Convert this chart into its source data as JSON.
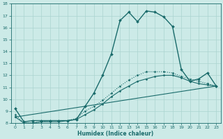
{
  "bg_color": "#cceae7",
  "grid_color": "#aad4d0",
  "line_color": "#1a6b6b",
  "xlabel": "Humidex (Indice chaleur)",
  "xlim": [
    -0.5,
    23.5
  ],
  "ylim": [
    8,
    18
  ],
  "yticks": [
    8,
    9,
    10,
    11,
    12,
    13,
    14,
    15,
    16,
    17,
    18
  ],
  "xticks": [
    0,
    1,
    2,
    3,
    4,
    5,
    6,
    7,
    8,
    9,
    10,
    11,
    12,
    13,
    14,
    15,
    16,
    17,
    18,
    19,
    20,
    21,
    22,
    23
  ],
  "series": [
    {
      "x": [
        0,
        1,
        2,
        3,
        4,
        5,
        6,
        7,
        8,
        9,
        10,
        11,
        12,
        13,
        14,
        15,
        16,
        17,
        18,
        19,
        20,
        21,
        22,
        23
      ],
      "y": [
        9.2,
        8.1,
        8.2,
        8.2,
        8.2,
        8.2,
        8.2,
        8.3,
        9.4,
        10.5,
        12.0,
        13.8,
        16.6,
        17.3,
        16.5,
        17.4,
        17.3,
        16.9,
        16.1,
        12.5,
        11.5,
        11.7,
        12.2,
        11.1
      ],
      "marker": "D",
      "markersize": 2.0,
      "linewidth": 1.0,
      "dotted": false
    },
    {
      "x": [
        0,
        1,
        2,
        3,
        4,
        5,
        6,
        7,
        8,
        9,
        10,
        11,
        12,
        13,
        14,
        15,
        16,
        17,
        18,
        19,
        20,
        21,
        22,
        23
      ],
      "y": [
        8.5,
        8.0,
        8.0,
        8.1,
        8.1,
        8.1,
        8.2,
        8.3,
        8.7,
        9.1,
        9.6,
        10.2,
        10.7,
        11.1,
        11.5,
        11.7,
        11.9,
        12.0,
        12.0,
        11.8,
        11.5,
        11.3,
        11.2,
        11.1
      ],
      "marker": "D",
      "markersize": 1.5,
      "linewidth": 0.8,
      "dotted": false
    },
    {
      "x": [
        0,
        1,
        2,
        3,
        4,
        5,
        6,
        7,
        8,
        9,
        10,
        11,
        12,
        13,
        14,
        15,
        16,
        17,
        18,
        19,
        20,
        21,
        22,
        23
      ],
      "y": [
        8.7,
        8.0,
        8.0,
        8.1,
        8.2,
        8.2,
        8.2,
        8.4,
        9.0,
        9.4,
        9.9,
        10.5,
        11.1,
        11.6,
        12.0,
        12.3,
        12.3,
        12.3,
        12.2,
        11.9,
        11.7,
        11.5,
        11.3,
        11.1
      ],
      "marker": "D",
      "markersize": 1.5,
      "linewidth": 0.8,
      "dotted": true
    },
    {
      "x": [
        0,
        23
      ],
      "y": [
        8.5,
        11.1
      ],
      "marker": "D",
      "markersize": 1.5,
      "linewidth": 0.8,
      "dotted": false
    }
  ]
}
